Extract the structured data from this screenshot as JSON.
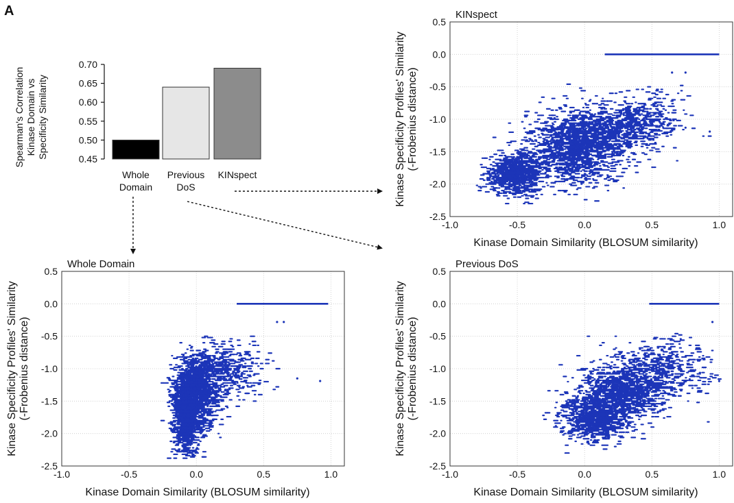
{
  "panel_label": "A",
  "chart_data": [
    {
      "type": "bar",
      "title": "",
      "ylabel_lines": [
        "Spearman's Correlation",
        "Kinase Domain vs",
        "Specificity Similarity"
      ],
      "categories": [
        [
          "Whole",
          "Domain"
        ],
        [
          "Previous",
          "DoS"
        ],
        [
          "KINspect"
        ]
      ],
      "values": [
        0.5,
        0.64,
        0.69
      ],
      "colors": [
        "#000000",
        "#e6e6e6",
        "#8c8c8c"
      ],
      "ylim": [
        0.45,
        0.7
      ],
      "yticks": [
        "0.45",
        "0.50",
        "0.55",
        "0.60",
        "0.65",
        "0.70"
      ]
    },
    {
      "type": "scatter",
      "title": "KINspect",
      "xlabel": "Kinase Domain Similarity (BLOSUM similarity)",
      "ylabel_lines": [
        "Kinase Specificity Profiles' Similarity",
        "(-Frobenius distance)"
      ],
      "xlim": [
        -1.0,
        1.1
      ],
      "ylim": [
        -2.5,
        0.5
      ],
      "xticks": [
        "-1.0",
        "-0.5",
        "0.0",
        "0.5",
        "1.0"
      ],
      "yticks": [
        "0.5",
        "0.0",
        "-0.5",
        "-1.0",
        "-1.5",
        "-2.0",
        "-2.5"
      ],
      "grid": true,
      "point_color": "#1c35b8",
      "zero_line_x": [
        0.15,
        1.0
      ],
      "clusters": [
        {
          "cx": -0.52,
          "cy": -1.85,
          "sx": 0.1,
          "sy": 0.15,
          "n": 900
        },
        {
          "cx": -0.08,
          "cy": -1.45,
          "sx": 0.17,
          "sy": 0.27,
          "n": 1300
        },
        {
          "cx": 0.22,
          "cy": -1.15,
          "sx": 0.2,
          "sy": 0.2,
          "n": 700
        },
        {
          "cx": 0.48,
          "cy": -0.9,
          "sx": 0.12,
          "sy": 0.2,
          "n": 150
        }
      ],
      "outliers": [
        [
          0.65,
          -0.28
        ],
        [
          0.75,
          -0.28
        ],
        [
          0.75,
          -1.13
        ],
        [
          0.93,
          -1.19
        ]
      ]
    },
    {
      "type": "scatter",
      "title": "Whole Domain",
      "xlabel": "Kinase Domain Similarity (BLOSUM similarity)",
      "ylabel_lines": [
        "Kinase Specificity Profiles' Similarity",
        "(-Frobenius distance)"
      ],
      "xlim": [
        -1.0,
        1.1
      ],
      "ylim": [
        -2.5,
        0.5
      ],
      "xticks": [
        "-1.0",
        "-0.5",
        "0.0",
        "0.5",
        "1.0"
      ],
      "yticks": [
        "0.5",
        "0.0",
        "-0.5",
        "-1.0",
        "-1.5",
        "-2.0",
        "-2.5"
      ],
      "grid": true,
      "point_color": "#1c35b8",
      "zero_line_x": [
        0.3,
        0.98
      ],
      "clusters": [
        {
          "cx": -0.08,
          "cy": -1.65,
          "sx": 0.05,
          "sy": 0.32,
          "n": 1400
        },
        {
          "cx": 0.02,
          "cy": -1.3,
          "sx": 0.08,
          "sy": 0.28,
          "n": 900
        },
        {
          "cx": 0.22,
          "cy": -1.0,
          "sx": 0.14,
          "sy": 0.2,
          "n": 350
        }
      ],
      "outliers": [
        [
          0.6,
          -0.28
        ],
        [
          0.65,
          -0.28
        ],
        [
          0.75,
          -1.15
        ],
        [
          0.92,
          -1.19
        ]
      ]
    },
    {
      "type": "scatter",
      "title": "Previous DoS",
      "xlabel": "Kinase Domain Similarity (BLOSUM similarity)",
      "ylabel_lines": [
        "Kinase Specificity Profiles' Similarity",
        "(-Frobenius distance)"
      ],
      "xlim": [
        -1.0,
        1.1
      ],
      "ylim": [
        -2.5,
        0.5
      ],
      "xticks": [
        "-1.0",
        "-0.5",
        "0.0",
        "0.5",
        "1.0"
      ],
      "yticks": [
        "0.5",
        "0.0",
        "-0.5",
        "-1.0",
        "-1.5",
        "-2.0",
        "-2.5"
      ],
      "grid": true,
      "point_color": "#1c35b8",
      "zero_line_x": [
        0.48,
        1.0
      ],
      "clusters": [
        {
          "cx": 0.08,
          "cy": -1.75,
          "sx": 0.12,
          "sy": 0.18,
          "n": 1000
        },
        {
          "cx": 0.28,
          "cy": -1.35,
          "sx": 0.16,
          "sy": 0.22,
          "n": 1000
        },
        {
          "cx": 0.55,
          "cy": -1.0,
          "sx": 0.18,
          "sy": 0.2,
          "n": 450
        }
      ],
      "outliers": [
        [
          0.95,
          -0.28
        ],
        [
          1.0,
          -1.19
        ]
      ]
    }
  ]
}
